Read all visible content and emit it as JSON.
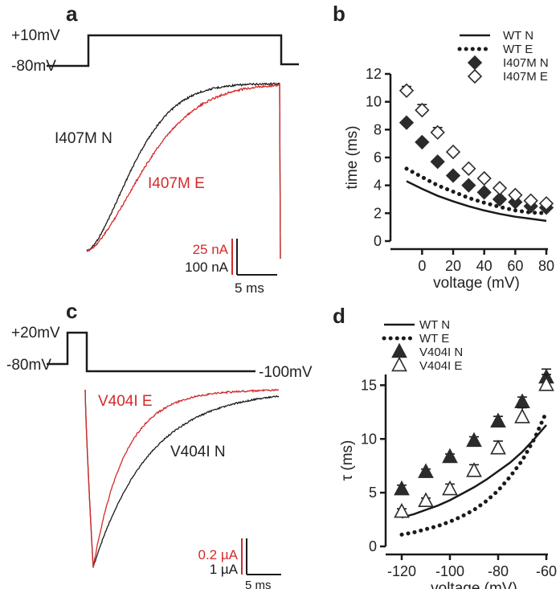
{
  "colors": {
    "black": "#1a1a1a",
    "red": "#d42a2a",
    "filled_marker": "#2b2b2b"
  },
  "panels": {
    "a": {
      "letter": "a",
      "protocol_high": "+10mV",
      "protocol_low": "-80mV",
      "trace_label_n": "I407M N",
      "trace_label_e": "I407M E",
      "scale_red": "25 nA",
      "scale_black": "100 nA",
      "scale_time": "5 ms"
    },
    "c": {
      "letter": "c",
      "protocol_high": "+20mV",
      "protocol_low": "-80mV",
      "protocol_hold": "-100mV",
      "trace_label_e": "V404I E",
      "trace_label_n": "V404I N",
      "scale_red": "0.2 µA",
      "scale_black": "1 µA",
      "scale_time": "5 ms"
    }
  },
  "chart_data": [
    {
      "panel": "b",
      "letter": "b",
      "type": "scatter",
      "xlabel": "voltage (mV)",
      "ylabel": "time (ms)",
      "xlim": [
        -10,
        80
      ],
      "ylim": [
        0,
        12
      ],
      "xticks": [
        0,
        20,
        40,
        60,
        80
      ],
      "yticks": [
        0,
        2,
        4,
        6,
        8,
        10,
        12
      ],
      "legend_position": "top-right",
      "series": [
        {
          "name": "WT N",
          "style": "solid-line",
          "x": [
            -10,
            0,
            10,
            20,
            30,
            40,
            50,
            60,
            70,
            80
          ],
          "values": [
            4.3,
            3.75,
            3.25,
            2.85,
            2.5,
            2.2,
            1.95,
            1.75,
            1.6,
            1.45
          ]
        },
        {
          "name": "WT E",
          "style": "dotted-line",
          "x": [
            -10,
            0,
            10,
            20,
            30,
            40,
            50,
            60,
            70,
            80
          ],
          "values": [
            5.2,
            4.6,
            4.0,
            3.55,
            3.1,
            2.75,
            2.45,
            2.2,
            2.05,
            2.0
          ]
        },
        {
          "name": "I407M N",
          "style": "filled-diamond",
          "x": [
            -10,
            0,
            10,
            20,
            30,
            40,
            50,
            60,
            70,
            80
          ],
          "values": [
            8.5,
            7.1,
            5.7,
            4.7,
            4.0,
            3.5,
            3.0,
            2.8,
            2.5,
            2.4
          ],
          "errors": [
            0,
            0,
            0,
            0,
            0,
            0,
            0,
            0,
            0,
            0
          ]
        },
        {
          "name": "I407M E",
          "style": "open-diamond",
          "x": [
            -10,
            0,
            10,
            20,
            30,
            40,
            50,
            60,
            70,
            80
          ],
          "values": [
            10.8,
            9.4,
            7.8,
            6.4,
            5.2,
            4.5,
            3.8,
            3.3,
            2.9,
            2.7
          ],
          "errors": [
            0.3,
            0.4,
            0.35,
            0,
            0,
            0,
            0,
            0,
            0,
            0
          ]
        }
      ]
    },
    {
      "panel": "d",
      "letter": "d",
      "type": "scatter",
      "xlabel": "voltage (mV)",
      "ylabel": "τ (ms)",
      "xlim": [
        -120,
        -60
      ],
      "ylim": [
        0,
        16
      ],
      "xticks": [
        -120,
        -100,
        -80,
        -60
      ],
      "yticks": [
        0,
        5,
        10,
        15
      ],
      "legend_position": "top-left",
      "series": [
        {
          "name": "WT N",
          "style": "solid-line",
          "x": [
            -120,
            -115,
            -110,
            -105,
            -100,
            -95,
            -90,
            -85,
            -80,
            -75,
            -70,
            -65,
            -60
          ],
          "values": [
            2.7,
            3.0,
            3.4,
            3.8,
            4.3,
            4.9,
            5.5,
            6.2,
            7.0,
            7.8,
            8.8,
            10.0,
            11.3
          ]
        },
        {
          "name": "WT E",
          "style": "dotted-line",
          "x": [
            -120,
            -115,
            -110,
            -105,
            -100,
            -95,
            -90,
            -85,
            -80,
            -75,
            -70,
            -65,
            -60
          ],
          "values": [
            1.1,
            1.3,
            1.6,
            1.9,
            2.3,
            2.8,
            3.4,
            4.2,
            5.2,
            6.5,
            8.0,
            10.0,
            12.5
          ]
        },
        {
          "name": "V404I N",
          "style": "filled-triangle",
          "x": [
            -120,
            -110,
            -100,
            -90,
            -80,
            -70,
            -60
          ],
          "values": [
            5.3,
            6.9,
            8.3,
            9.8,
            11.6,
            13.4,
            15.7
          ],
          "errors": [
            0.4,
            0.3,
            0.3,
            0.4,
            0.5,
            0.5,
            0.8
          ]
        },
        {
          "name": "V404I E",
          "style": "open-triangle",
          "x": [
            -120,
            -110,
            -100,
            -90,
            -80,
            -70,
            -60
          ],
          "values": [
            3.2,
            4.2,
            5.3,
            7.0,
            9.1,
            12.0,
            15.0
          ],
          "errors": [
            0.3,
            0.3,
            0.5,
            0.6,
            0.7,
            0.9,
            1.0
          ]
        }
      ]
    }
  ]
}
